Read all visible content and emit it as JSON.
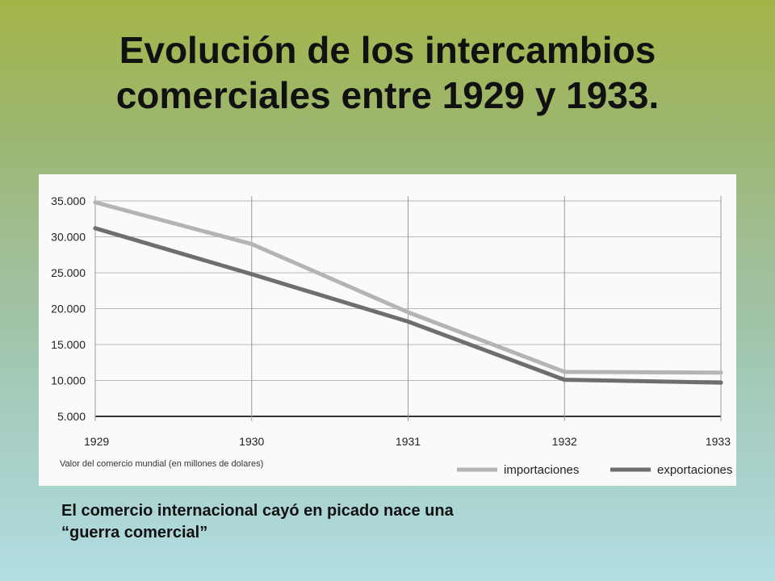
{
  "slide": {
    "title_line1": "Evolución de los intercambios",
    "title_line2": "comerciales entre 1929 y 1933.",
    "caption_line1": "El comercio internacional cayó en picado nace una",
    "caption_line2": "“guerra comercial”"
  },
  "chart_data": {
    "type": "line",
    "x": [
      "1929",
      "1930",
      "1931",
      "1932",
      "1933"
    ],
    "series": [
      {
        "name": "importaciones",
        "values": [
          34800,
          29000,
          19500,
          11200,
          11100
        ],
        "color": "#b4b4b4"
      },
      {
        "name": "exportaciones",
        "values": [
          31200,
          24800,
          18200,
          10100,
          9700
        ],
        "color": "#6e6e6e"
      }
    ],
    "y_ticks": [
      "35.000",
      "30.000",
      "25.000",
      "20.000",
      "15.000",
      "10.000",
      "5.000"
    ],
    "y_tick_values": [
      35000,
      30000,
      25000,
      20000,
      15000,
      10000,
      5000
    ],
    "ylim": [
      5000,
      35000
    ],
    "xlabel": "Valor del comercio mundial (en millones de dolares)",
    "grid": true,
    "legend_position": "bottom-right"
  }
}
